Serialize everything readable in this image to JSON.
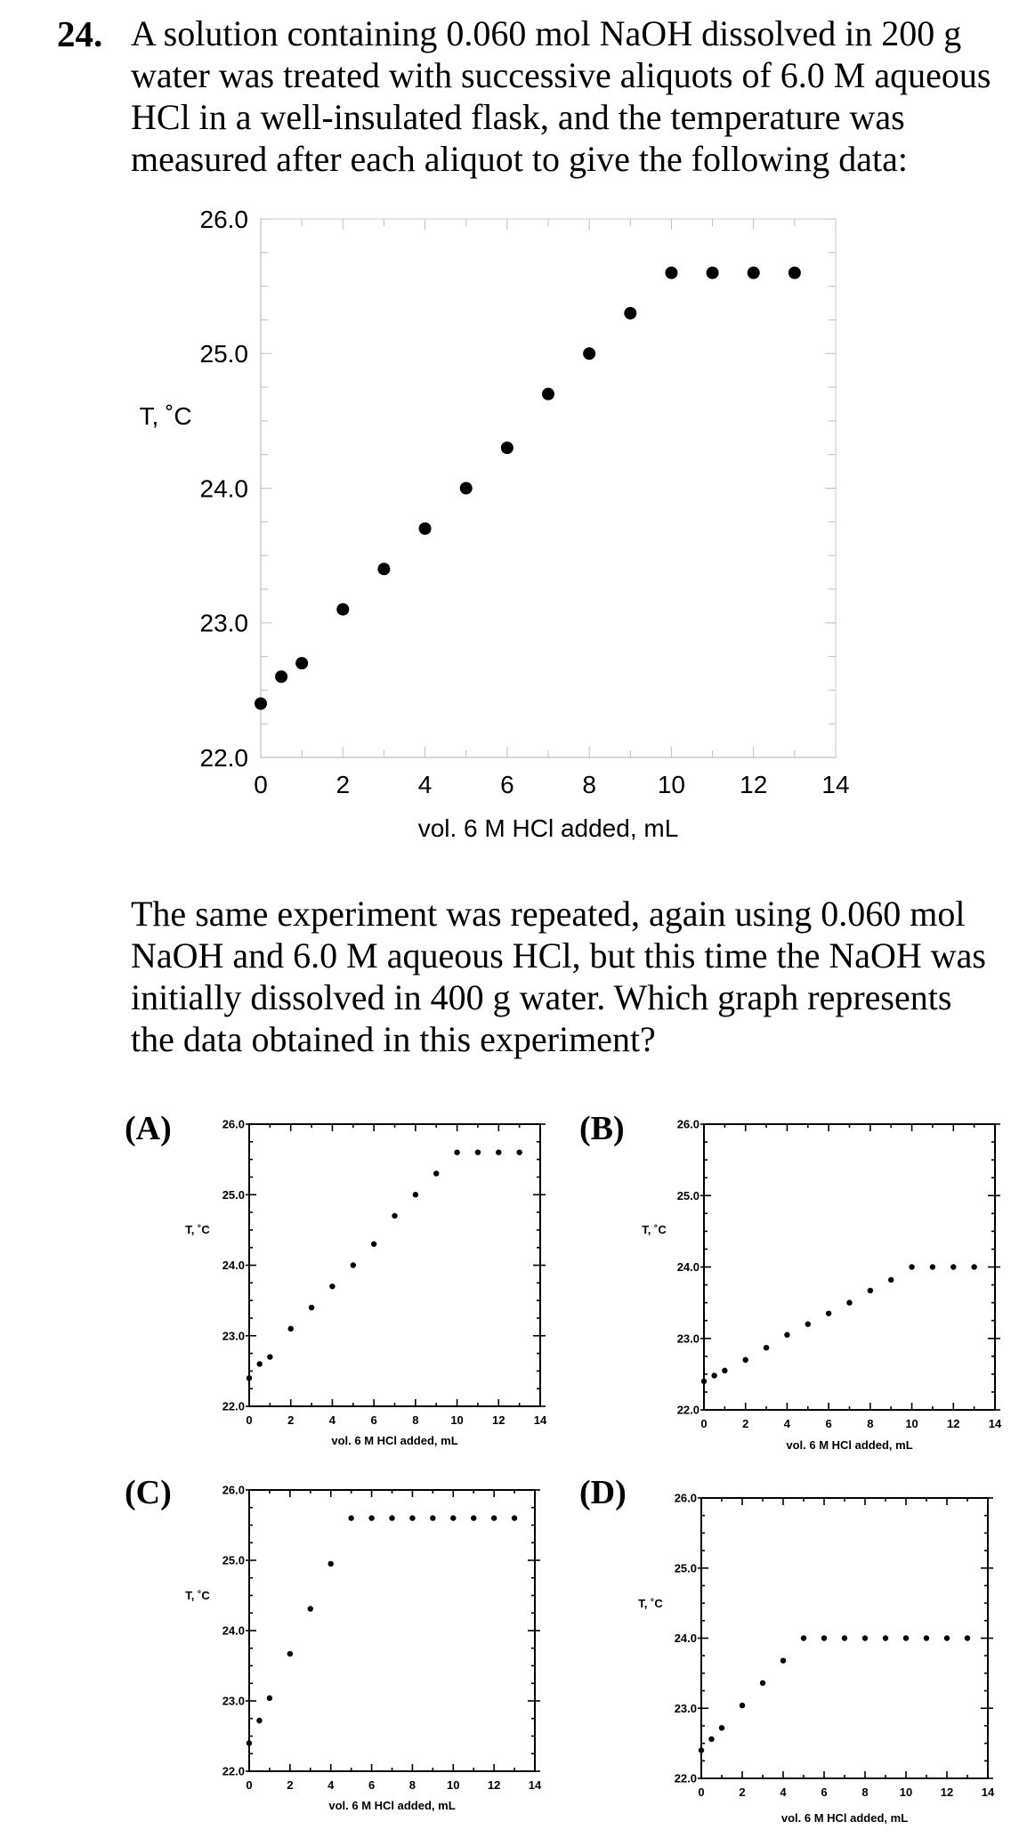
{
  "question": {
    "number": "24.",
    "stem_lines": [
      "A solution containing 0.060 mol NaOH dissolved in 200 g",
      "water was treated with successive aliquots of 6.0 M aqueous",
      "HCl in a well-insulated flask, and the temperature was",
      "measured after each aliquot to give the following data:"
    ],
    "followup_lines": [
      "The same experiment was repeated, again using 0.060 mol",
      "NaOH and 6.0 M aqueous HCl, but this time the NaOH was",
      "initially dissolved in 400 g water.  Which graph represents",
      "the data obtained in this experiment?"
    ],
    "choice_labels": [
      "(A)",
      "(B)",
      "(C)",
      "(D)"
    ]
  },
  "chart_data": [
    {
      "id": "main",
      "type": "scatter",
      "xlabel": "vol. 6 M HCl added, mL",
      "ylabel": "T, ˚C",
      "xlim": [
        0,
        14
      ],
      "ylim": [
        22.0,
        26.0
      ],
      "xticks": [
        "0",
        "2",
        "4",
        "6",
        "8",
        "10",
        "12",
        "14"
      ],
      "yticks": [
        "22.0",
        "23.0",
        "24.0",
        "25.0",
        "26.0"
      ],
      "grid": false,
      "x": [
        0,
        0.5,
        1,
        2,
        3,
        4,
        5,
        6,
        7,
        8,
        9,
        10,
        11,
        12,
        13
      ],
      "y": [
        22.4,
        22.6,
        22.7,
        23.1,
        23.4,
        23.7,
        24.0,
        24.3,
        24.7,
        25.0,
        25.3,
        25.6,
        25.6,
        25.6,
        25.6
      ]
    },
    {
      "id": "A",
      "type": "scatter",
      "xlabel": "vol. 6 M HCl added, mL",
      "ylabel": "T, ˚C",
      "xlim": [
        0,
        14
      ],
      "ylim": [
        22.0,
        26.0
      ],
      "xticks": [
        "0",
        "2",
        "4",
        "6",
        "8",
        "10",
        "12",
        "14"
      ],
      "yticks": [
        "22.0",
        "23.0",
        "24.0",
        "25.0",
        "26.0"
      ],
      "x": [
        0,
        0.5,
        1,
        2,
        3,
        4,
        5,
        6,
        7,
        8,
        9,
        10,
        11,
        12,
        13
      ],
      "y": [
        22.4,
        22.6,
        22.7,
        23.1,
        23.4,
        23.7,
        24.0,
        24.3,
        24.7,
        25.0,
        25.3,
        25.6,
        25.6,
        25.6,
        25.6
      ]
    },
    {
      "id": "B",
      "type": "scatter",
      "xlabel": "vol. 6 M HCl added, mL",
      "ylabel": "T, ˚C",
      "xlim": [
        0,
        14
      ],
      "ylim": [
        22.0,
        26.0
      ],
      "xticks": [
        "0",
        "2",
        "4",
        "6",
        "8",
        "10",
        "12",
        "14"
      ],
      "yticks": [
        "22.0",
        "23.0",
        "24.0",
        "25.0",
        "26.0"
      ],
      "x": [
        0,
        0.5,
        1,
        2,
        3,
        4,
        5,
        6,
        7,
        8,
        9,
        10,
        11,
        12,
        13
      ],
      "y": [
        22.4,
        22.48,
        22.55,
        22.7,
        22.87,
        23.05,
        23.2,
        23.35,
        23.5,
        23.67,
        23.82,
        24.0,
        24.0,
        24.0,
        24.0
      ]
    },
    {
      "id": "C",
      "type": "scatter",
      "xlabel": "vol. 6 M HCl added, mL",
      "ylabel": "T, ˚C",
      "xlim": [
        0,
        14
      ],
      "ylim": [
        22.0,
        26.0
      ],
      "xticks": [
        "0",
        "2",
        "4",
        "6",
        "8",
        "10",
        "12",
        "14"
      ],
      "yticks": [
        "22.0",
        "23.0",
        "24.0",
        "25.0",
        "26.0"
      ],
      "x": [
        0,
        0.5,
        1,
        2,
        3,
        4,
        5,
        6,
        7,
        8,
        9,
        10,
        11,
        12,
        13
      ],
      "y": [
        22.4,
        22.72,
        23.04,
        23.67,
        24.31,
        24.95,
        25.6,
        25.6,
        25.6,
        25.6,
        25.6,
        25.6,
        25.6,
        25.6,
        25.6
      ]
    },
    {
      "id": "D",
      "type": "scatter",
      "xlabel": "vol. 6 M HCl added, mL",
      "ylabel": "T, ˚C",
      "xlim": [
        0,
        14
      ],
      "ylim": [
        22.0,
        26.0
      ],
      "xticks": [
        "0",
        "2",
        "4",
        "6",
        "8",
        "10",
        "12",
        "14"
      ],
      "yticks": [
        "22.0",
        "23.0",
        "24.0",
        "25.0",
        "26.0"
      ],
      "x": [
        0,
        0.5,
        1,
        2,
        3,
        4,
        5,
        6,
        7,
        8,
        9,
        10,
        11,
        12,
        13
      ],
      "y": [
        22.4,
        22.56,
        22.72,
        23.04,
        23.36,
        23.68,
        24.0,
        24.0,
        24.0,
        24.0,
        24.0,
        24.0,
        24.0,
        24.0,
        24.0
      ]
    }
  ]
}
